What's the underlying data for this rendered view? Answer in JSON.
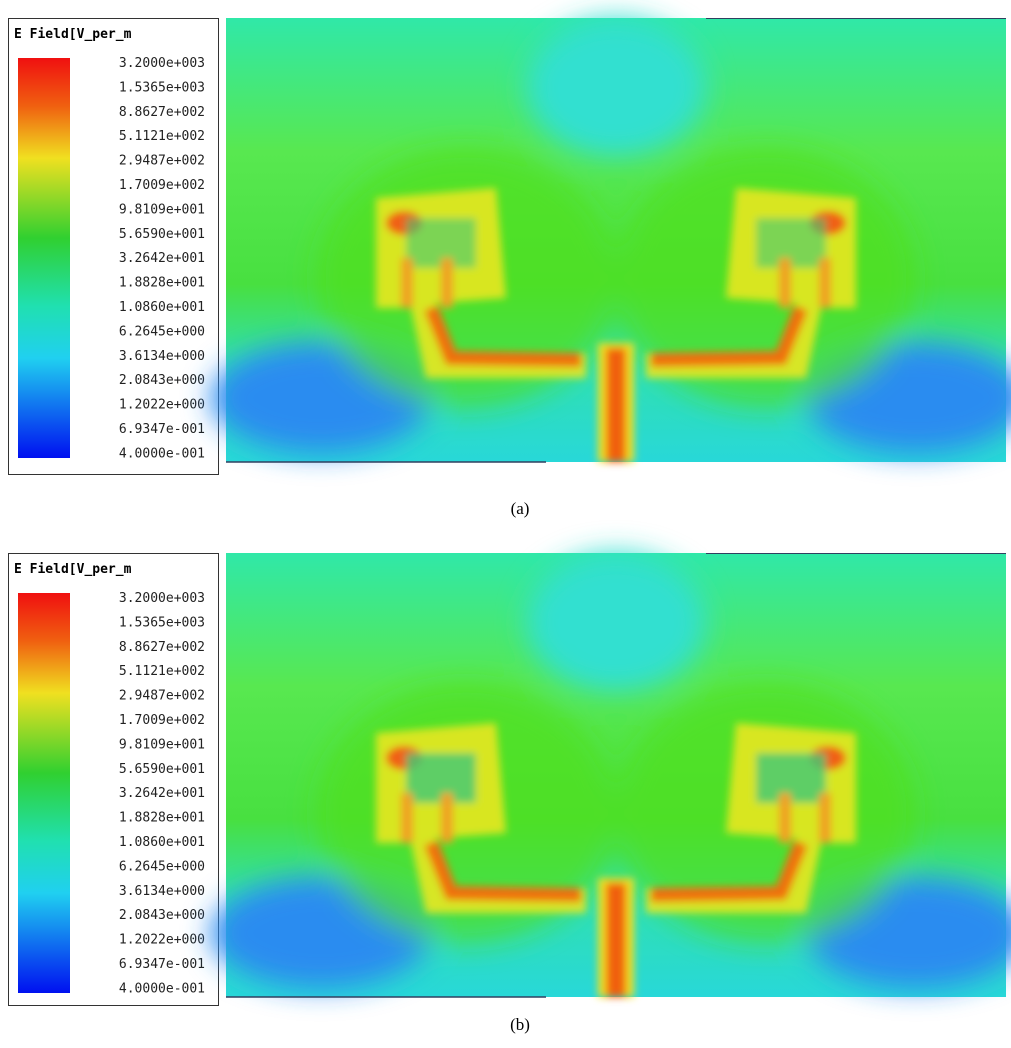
{
  "panels": [
    {
      "legend": {
        "title": "E Field[V_per_m",
        "labels": [
          "3.2000e+003",
          "1.5365e+003",
          "8.8627e+002",
          "5.1121e+002",
          "2.9487e+002",
          "1.7009e+002",
          "9.8109e+001",
          "5.6590e+001",
          "3.2642e+001",
          "1.8828e+001",
          "1.0860e+001",
          "6.2645e+000",
          "3.6134e+000",
          "2.0843e+000",
          "1.2022e+000",
          "6.9347e-001",
          "4.0000e-001"
        ]
      },
      "caption": "(a)"
    },
    {
      "legend": {
        "title": "E Field[V_per_m",
        "labels": [
          "3.2000e+003",
          "1.5365e+003",
          "8.8627e+002",
          "5.1121e+002",
          "2.9487e+002",
          "1.7009e+002",
          "9.8109e+001",
          "5.6590e+001",
          "3.2642e+001",
          "1.8828e+001",
          "1.0860e+001",
          "6.2645e+000",
          "3.6134e+000",
          "2.0843e+000",
          "1.2022e+000",
          "6.9347e-001",
          "4.0000e-001"
        ]
      },
      "caption": "(b)"
    }
  ]
}
